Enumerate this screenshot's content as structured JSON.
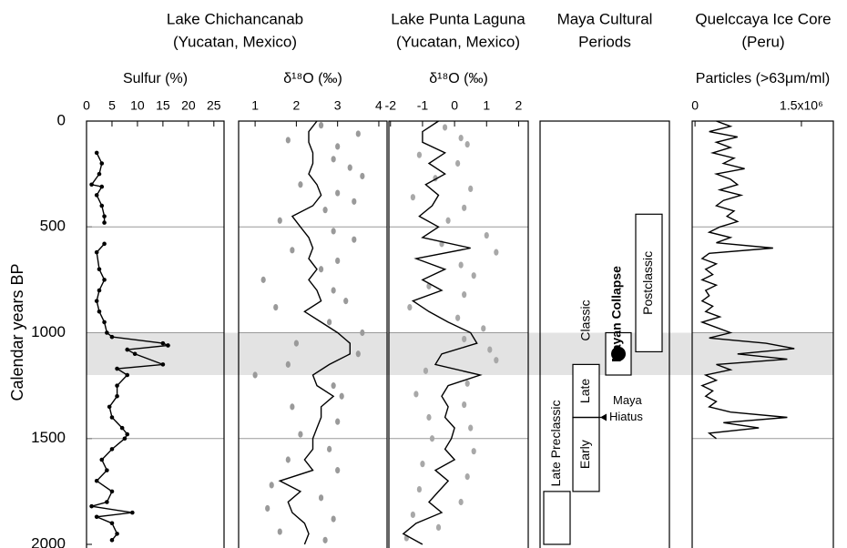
{
  "age_axis": {
    "label": "Calendar years BP",
    "ylim": [
      0,
      2000
    ],
    "yticks": [
      0,
      500,
      1000,
      1500,
      2000
    ],
    "band": [
      1000,
      1200
    ],
    "band_color": "#e3e3e3"
  },
  "headers": [
    {
      "lines": [
        "Lake Chichancanab",
        "(Yucatan, Mexico)"
      ]
    },
    {
      "lines": [
        "Lake Punta Laguna",
        "(Yucatan, Mexico)"
      ]
    },
    {
      "lines": [
        "Maya Cultural",
        "Periods"
      ]
    },
    {
      "lines": [
        "Quelccaya Ice Core",
        "(Peru)"
      ]
    }
  ],
  "chart_data": [
    {
      "type": "line",
      "label": "Sulfur (%)",
      "xlim": [
        0,
        27
      ],
      "xticks": [
        0,
        5,
        10,
        15,
        20,
        25
      ],
      "color": "#000",
      "markers": true,
      "age": [
        150,
        200,
        250,
        300,
        310,
        350,
        400,
        450,
        480,
        530,
        580,
        620,
        700,
        750,
        800,
        850,
        900,
        950,
        1000,
        1020,
        1050,
        1060,
        1080,
        1100,
        1150,
        1170,
        1200,
        1250,
        1300,
        1350,
        1400,
        1450,
        1480,
        1500,
        1550,
        1600,
        1650,
        1700,
        1750,
        1800,
        1820,
        1850,
        1870,
        1900,
        1950,
        1980
      ],
      "values": [
        2,
        3,
        2.5,
        1,
        3,
        2,
        3,
        3.5,
        3.5,
        null,
        3.5,
        2,
        2.5,
        3.5,
        2.5,
        2,
        2.5,
        3.5,
        4,
        5,
        15,
        16,
        8,
        9.5,
        15,
        6,
        8,
        6,
        6,
        4.5,
        5,
        7,
        8,
        7.5,
        5,
        3,
        4,
        2,
        5,
        4,
        1,
        9,
        2,
        5,
        6,
        5
      ]
    },
    {
      "type": "line",
      "label": "δ¹⁸O (‰)",
      "xlim": [
        0.6,
        4.2
      ],
      "xticks": [
        1,
        2,
        3,
        4
      ],
      "color": "#000",
      "markers": false,
      "age": [
        0,
        50,
        100,
        150,
        200,
        250,
        300,
        350,
        400,
        450,
        500,
        550,
        600,
        650,
        700,
        750,
        800,
        850,
        900,
        950,
        1000,
        1050,
        1100,
        1150,
        1200,
        1250,
        1300,
        1350,
        1400,
        1450,
        1500,
        1550,
        1600,
        1650,
        1700,
        1750,
        1800,
        1850,
        1900,
        1950,
        2000
      ],
      "values": [
        2.5,
        2.3,
        2.3,
        2.4,
        2.4,
        2.3,
        2.5,
        2.6,
        2.4,
        1.9,
        2.1,
        2.3,
        2.4,
        2.3,
        2.5,
        2.3,
        2.5,
        2.6,
        2.2,
        2.6,
        3.0,
        3.3,
        3.3,
        2.8,
        2.4,
        2.5,
        2.9,
        2.6,
        2.6,
        2.5,
        2.4,
        2.4,
        2.2,
        2.4,
        1.6,
        2.1,
        1.8,
        1.9,
        2.2,
        2.3,
        2.2
      ],
      "scatter": {
        "color": "#9a9a9a",
        "age": [
          20,
          60,
          90,
          120,
          180,
          220,
          260,
          300,
          340,
          380,
          420,
          470,
          520,
          560,
          610,
          660,
          700,
          750,
          800,
          850,
          880,
          950,
          1000,
          1050,
          1100,
          1150,
          1200,
          1250,
          1300,
          1350,
          1420,
          1480,
          1550,
          1600,
          1650,
          1720,
          1780,
          1830,
          1880,
          1940,
          1980
        ],
        "values": [
          2.6,
          3.5,
          1.8,
          3.0,
          2.9,
          3.3,
          3.6,
          2.1,
          3.0,
          3.4,
          2.7,
          1.6,
          2.9,
          3.4,
          1.9,
          3.0,
          2.6,
          1.2,
          2.9,
          3.2,
          1.5,
          2.8,
          3.6,
          2.0,
          3.5,
          1.8,
          1.0,
          2.9,
          3.1,
          1.9,
          3.0,
          2.1,
          2.8,
          1.8,
          3.0,
          1.4,
          2.6,
          1.3,
          2.9,
          1.6,
          2.7
        ]
      }
    },
    {
      "type": "line",
      "label": "δ¹⁸O (‰)",
      "xlim": [
        -2.05,
        2.3
      ],
      "xticks": [
        -2,
        -1,
        0,
        1,
        2
      ],
      "color": "#000",
      "markers": false,
      "age": [
        0,
        50,
        100,
        150,
        200,
        250,
        300,
        350,
        400,
        450,
        500,
        550,
        600,
        650,
        700,
        750,
        800,
        850,
        900,
        950,
        1000,
        1050,
        1100,
        1150,
        1200,
        1250,
        1300,
        1350,
        1400,
        1450,
        1500,
        1550,
        1600,
        1650,
        1700,
        1750,
        1800,
        1850,
        1900,
        1950,
        2000
      ],
      "values": [
        -0.5,
        -1,
        -1,
        -0.3,
        -0.8,
        -0.3,
        -0.9,
        -0.5,
        -0.7,
        -1.1,
        -0.5,
        -1,
        0.5,
        -1.2,
        -0.3,
        -1,
        -0.4,
        -1.3,
        -0.8,
        -0.2,
        0.5,
        0.7,
        -0.4,
        -0.6,
        0.8,
        -0.2,
        -0.4,
        -0.2,
        -0.3,
        0,
        -0.1,
        -0.3,
        0,
        -0.6,
        -0.2,
        -0.5,
        -0.8,
        -0.4,
        -1.2,
        -1.6,
        -1.0
      ],
      "scatter": {
        "color": "#a8a8a8",
        "age": [
          30,
          80,
          110,
          160,
          200,
          270,
          320,
          360,
          410,
          470,
          540,
          580,
          620,
          680,
          730,
          780,
          820,
          880,
          930,
          980,
          1030,
          1080,
          1130,
          1180,
          1240,
          1290,
          1340,
          1400,
          1450,
          1500,
          1560,
          1620,
          1680,
          1740,
          1800,
          1860,
          1920,
          1970
        ],
        "values": [
          -0.3,
          0.2,
          0.4,
          -1.1,
          0.1,
          -0.6,
          0.5,
          -1.3,
          0.3,
          -0.2,
          1.0,
          -0.4,
          1.3,
          0.2,
          0.6,
          -0.8,
          0.3,
          -1.4,
          0.1,
          0.9,
          0.3,
          1.1,
          1.3,
          -0.9,
          0.4,
          -1.2,
          0.3,
          -0.8,
          0.5,
          -0.7,
          0.6,
          -1.0,
          0.4,
          -1.1,
          0.2,
          -1.3,
          -0.5,
          -1.5
        ]
      }
    },
    {
      "type": "periods",
      "periods": [
        {
          "label": "Late Preclassic",
          "start": 1750,
          "end": 2000
        },
        {
          "label": "Early",
          "start": 1400,
          "end": 1750
        },
        {
          "label": "Late",
          "start": 1150,
          "end": 1400
        },
        {
          "label": "Postclassic",
          "start": 440,
          "end": 1090
        }
      ],
      "classic_label": "Classic",
      "collapse": {
        "label": "Mayan Collapse",
        "start": 1000,
        "end": 1200
      },
      "hiatus": {
        "lines": [
          "Maya",
          "Hiatus"
        ],
        "age": 1400
      }
    },
    {
      "type": "line",
      "label": "Particles (>63μm/ml)",
      "xlim": [
        -40000,
        1950000
      ],
      "xticks": [
        0,
        {
          "value": 1500000,
          "label": "1.5x10⁶"
        }
      ],
      "color": "#000",
      "markers": false,
      "age": [
        0,
        25,
        50,
        75,
        100,
        125,
        150,
        175,
        200,
        225,
        250,
        275,
        300,
        325,
        350,
        375,
        400,
        425,
        450,
        475,
        500,
        525,
        550,
        575,
        600,
        625,
        650,
        675,
        700,
        725,
        750,
        775,
        800,
        825,
        850,
        875,
        900,
        925,
        950,
        975,
        1000,
        1025,
        1050,
        1075,
        1100,
        1125,
        1150,
        1175,
        1200,
        1225,
        1250,
        1275,
        1300,
        1325,
        1350,
        1375,
        1400,
        1425,
        1450,
        1475,
        1500
      ],
      "values": [
        300000,
        500000,
        200000,
        600000,
        300000,
        500000,
        250000,
        550000,
        400000,
        700000,
        300000,
        500000,
        600000,
        350000,
        650000,
        400000,
        300000,
        550000,
        450000,
        600000,
        350000,
        200000,
        500000,
        300000,
        1100000,
        200000,
        100000,
        300000,
        150000,
        250000,
        100000,
        300000,
        150000,
        200000,
        100000,
        250000,
        150000,
        350000,
        100000,
        300000,
        500000,
        200000,
        1000000,
        1400000,
        600000,
        1300000,
        300000,
        500000,
        150000,
        300000,
        100000,
        250000,
        150000,
        300000,
        200000,
        500000,
        1300000,
        400000,
        900000,
        200000,
        300000
      ]
    }
  ]
}
